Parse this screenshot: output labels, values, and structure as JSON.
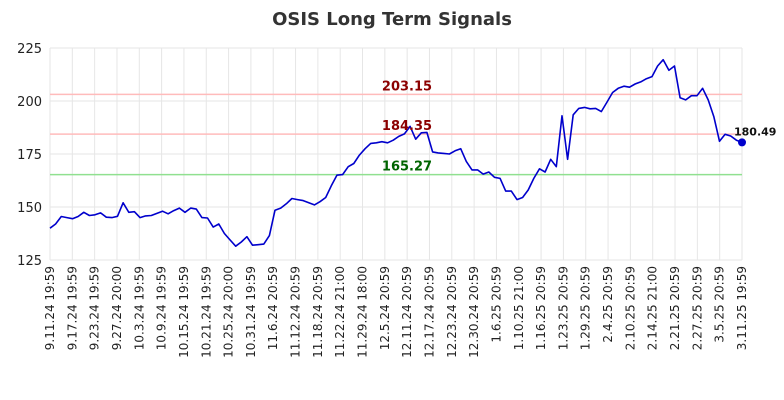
{
  "chart_data": {
    "type": "line",
    "title": "OSIS Long Term Signals",
    "xlabel": "",
    "ylabel": "",
    "ylim": [
      125,
      225
    ],
    "yticks": [
      125,
      150,
      175,
      200,
      225
    ],
    "grid": true,
    "xtick_labels": [
      "9.11.24 19:59",
      "9.17.24 19:59",
      "9.23.24 19:59",
      "9.27.24 20:00",
      "10.3.24 19:59",
      "10.9.24 19:59",
      "10.15.24 19:59",
      "10.21.24 19:59",
      "10.25.24 20:00",
      "10.31.24 19:59",
      "11.6.24 20:59",
      "11.12.24 20:59",
      "11.18.24 20:59",
      "11.22.24 21:00",
      "11.29.24 18:00",
      "12.5.24 20:59",
      "12.11.24 20:59",
      "12.17.24 20:59",
      "12.23.24 20:59",
      "12.30.24 20:59",
      "1.6.25 20:59",
      "1.10.25 21:00",
      "1.16.25 20:59",
      "1.23.25 20:59",
      "1.29.25 20:59",
      "2.4.25 20:59",
      "2.10.25 20:59",
      "2.14.25 21:00",
      "2.21.25 20:59",
      "2.27.25 20:59",
      "3.5.25 20:59",
      "3.11.25 19:59"
    ],
    "series": [
      {
        "color": "#0000cc",
        "values": [
          140.0,
          142.0,
          145.5,
          145.0,
          144.5,
          145.5,
          147.5,
          146.0,
          146.3,
          147.2,
          145.2,
          145.0,
          145.6,
          152.0,
          147.5,
          147.8,
          145.0,
          145.8,
          146.0,
          147.0,
          148.0,
          146.8,
          148.3,
          149.5,
          147.5,
          149.5,
          149.0,
          145.0,
          144.8,
          140.5,
          142.0,
          137.5,
          134.5,
          131.5,
          133.5,
          136.0,
          132.0,
          132.2,
          132.5,
          136.5,
          148.5,
          149.5,
          151.5,
          154.0,
          153.5,
          153.0,
          152.0,
          151.0,
          152.5,
          154.5,
          160.0,
          165.0,
          165.3,
          169.0,
          170.5,
          174.5,
          177.5,
          180.0,
          180.3,
          180.8,
          180.3,
          181.5,
          183.3,
          184.5,
          188.0,
          182.0,
          185.0,
          185.2,
          176.0,
          175.5,
          175.3,
          175.0,
          176.5,
          177.5,
          171.5,
          167.5,
          167.5,
          165.5,
          166.5,
          164.0,
          163.5,
          157.5,
          157.5,
          153.5,
          154.5,
          158.0,
          163.5,
          168.0,
          166.5,
          172.5,
          169.0,
          193.0,
          172.5,
          193.5,
          196.5,
          197.0,
          196.3,
          196.5,
          195.0,
          199.5,
          204.0,
          206.0,
          207.0,
          206.5,
          208.0,
          209.0,
          210.5,
          211.5,
          216.5,
          219.5,
          214.5,
          216.5,
          201.5,
          200.5,
          202.5,
          202.5,
          206.0,
          200.5,
          192.5,
          181.0,
          184.3,
          183.5,
          181.5,
          180.49
        ]
      }
    ],
    "hlines": [
      {
        "value": 203.15,
        "label": "203.15",
        "line_color": "#ffbbbb",
        "label_color": "#8b0000"
      },
      {
        "value": 184.35,
        "label": "184.35",
        "line_color": "#ffbbbb",
        "label_color": "#8b0000"
      },
      {
        "value": 165.27,
        "label": "165.27",
        "line_color": "#90e090",
        "label_color": "#006400"
      }
    ],
    "last_point_label": "180.49"
  }
}
